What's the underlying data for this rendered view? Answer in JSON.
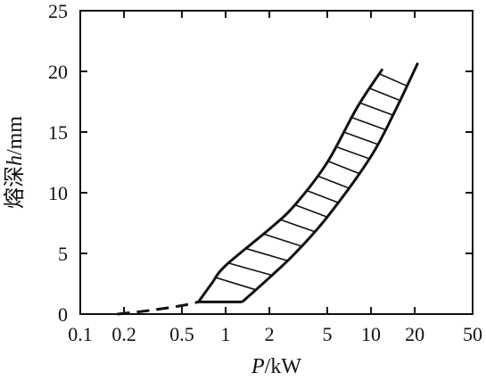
{
  "chart_data": {
    "type": "area",
    "xlabel_italic": "P",
    "xlabel_unit": "/kW",
    "ylabel_cjk": "熔深",
    "ylabel_italic": "h",
    "ylabel_unit": "/mm",
    "x_scale": "log",
    "xlim": [
      0.1,
      50
    ],
    "ylim": [
      0,
      25
    ],
    "x_ticks": [
      0.1,
      0.2,
      0.5,
      1,
      2,
      5,
      10,
      20,
      50
    ],
    "x_tick_labels": [
      "0.1",
      "0.2",
      "0.5",
      "1",
      "2",
      "5",
      "10",
      "20",
      "50"
    ],
    "y_ticks": [
      0,
      5,
      10,
      15,
      20,
      25
    ],
    "y_tick_labels": [
      "0",
      "5",
      "10",
      "15",
      "20",
      "25"
    ],
    "grid": false,
    "band": {
      "upper": [
        [
          0.65,
          1.0
        ],
        [
          0.8,
          2.5
        ],
        [
          1.0,
          4.0
        ],
        [
          2.0,
          7.0
        ],
        [
          3.0,
          9.0
        ],
        [
          5.0,
          12.5
        ],
        [
          8.0,
          17.0
        ],
        [
          12.0,
          20.2
        ]
      ],
      "lower": [
        [
          1.3,
          1.0
        ],
        [
          2.0,
          3.0
        ],
        [
          3.0,
          5.0
        ],
        [
          5.0,
          8.0
        ],
        [
          10.0,
          13.0
        ],
        [
          15.0,
          17.0
        ],
        [
          21.0,
          20.7
        ]
      ]
    },
    "dashed_segment": [
      [
        0.18,
        0.0
      ],
      [
        0.3,
        0.3
      ],
      [
        0.5,
        0.7
      ],
      [
        0.65,
        1.0
      ]
    ]
  }
}
